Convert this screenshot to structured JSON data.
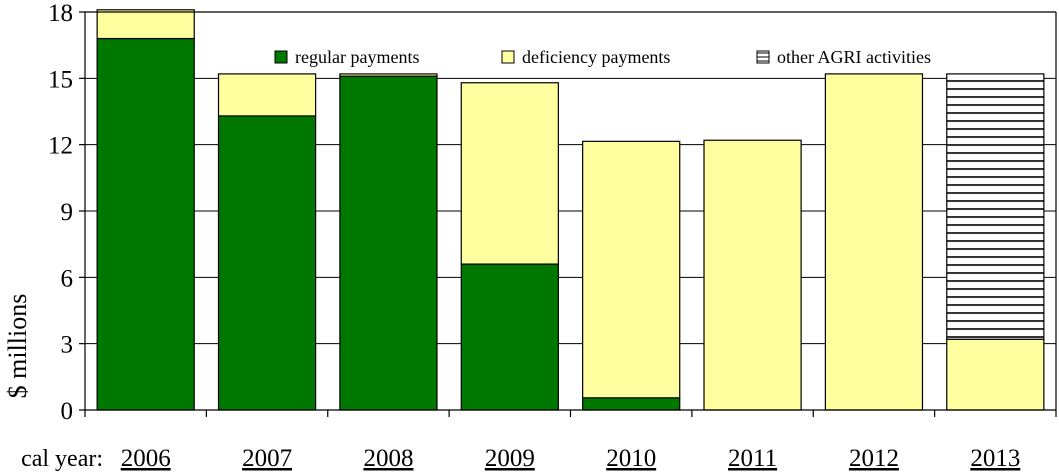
{
  "chart_data": {
    "type": "bar",
    "stacked": true,
    "title": "",
    "xlabel": "cal year:",
    "ylabel": "$ millions",
    "ylim": [
      0,
      18
    ],
    "yticks": [
      "0",
      "3",
      "6",
      "9",
      "12",
      "15",
      "18"
    ],
    "categories": [
      "2006",
      "2007",
      "2008",
      "2009",
      "2010",
      "2011",
      "2012",
      "2013"
    ],
    "series": [
      {
        "name": "regular payments",
        "color": "#007800",
        "pattern": "solid",
        "values": [
          16.8,
          13.3,
          15.1,
          6.6,
          0.55,
          0,
          0,
          0
        ]
      },
      {
        "name": "deficiency payments",
        "color": "#ffffa0",
        "pattern": "solid",
        "values": [
          1.3,
          1.9,
          0.1,
          8.2,
          11.6,
          12.2,
          15.2,
          3.2
        ]
      },
      {
        "name": "other AGRI activities",
        "color": "#ffffff",
        "pattern": "horizontal-lines",
        "values": [
          0,
          0,
          0,
          0,
          0,
          0,
          0,
          12.0
        ]
      }
    ],
    "legend_position": "top-right",
    "grid": true,
    "category_labels_underlined": true
  }
}
